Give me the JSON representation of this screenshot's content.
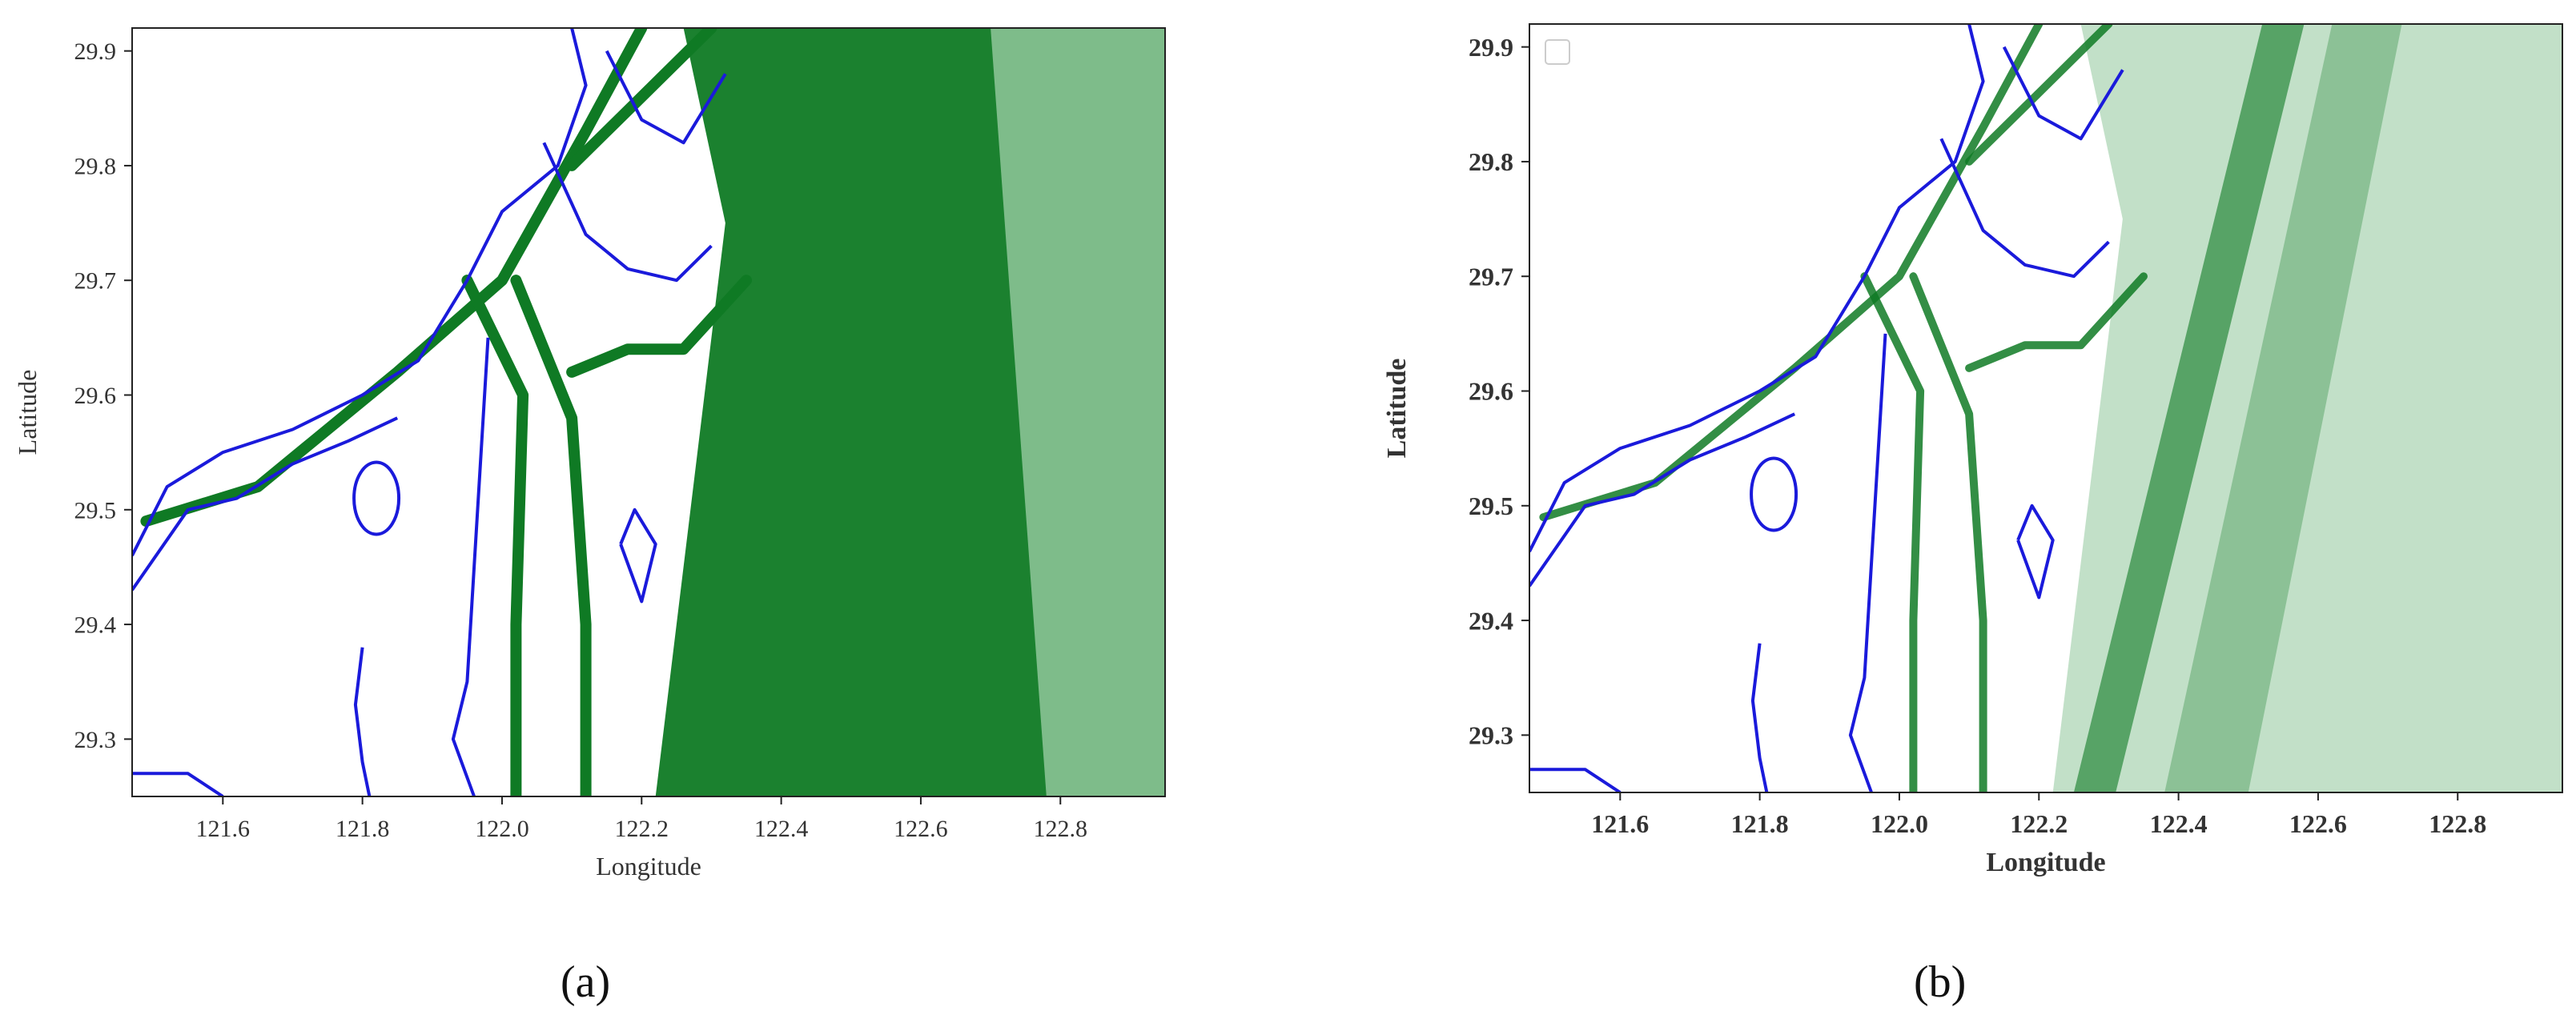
{
  "colors": {
    "coastline": "#1a1adb",
    "traffic": "#0f7a24",
    "traffic_light": "#8fc79a",
    "frame": "#222222"
  },
  "icons": [
    "legend-box-icon"
  ],
  "chart_data": [
    {
      "type": "heatmap",
      "panel": "a",
      "caption": "(a)",
      "xlabel": "Longitude",
      "ylabel": "Latitude",
      "xlim": [
        121.47,
        122.95
      ],
      "ylim": [
        29.25,
        29.92
      ],
      "x_ticks": [
        "121.6",
        "121.8",
        "122.0",
        "122.2",
        "122.4",
        "122.6",
        "122.8"
      ],
      "y_ticks": [
        "29.3",
        "29.4",
        "29.5",
        "29.6",
        "29.7",
        "29.8",
        "29.9"
      ],
      "grid": false,
      "legend": "none"
    },
    {
      "type": "heatmap",
      "panel": "b",
      "caption": "(b)",
      "xlabel": "Longitude",
      "ylabel": "Latitude",
      "xlim": [
        121.47,
        122.95
      ],
      "ylim": [
        29.25,
        29.92
      ],
      "x_ticks": [
        "121.6",
        "121.8",
        "122.0",
        "122.2",
        "122.4",
        "122.6",
        "122.8"
      ],
      "y_ticks": [
        "29.3",
        "29.4",
        "29.5",
        "29.6",
        "29.7",
        "29.8",
        "29.9"
      ],
      "grid": false,
      "legend": "top-left (empty box)"
    }
  ]
}
